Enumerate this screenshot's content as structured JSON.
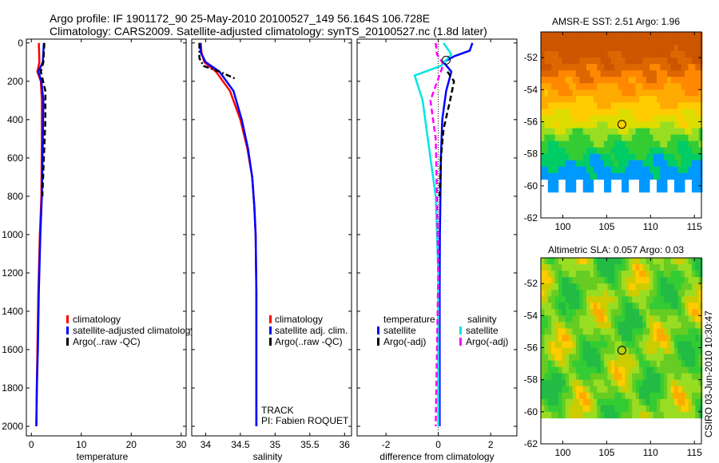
{
  "header": {
    "line1": "Argo profile: IF 1901172_90 25-May-2010 20100527_149 56.164S 106.728E",
    "line2": "Climatology: CARS2009. Satellite-adjusted climatology: synTS_20100527.nc (1.8d later)"
  },
  "colors": {
    "clim": "#ff0000",
    "sat": "#0000ff",
    "argo": "#000000",
    "sat_diff": "#00e5e5",
    "argo_adj": "#ff00ff"
  },
  "chart_data": [
    {
      "type": "line",
      "id": "temperature",
      "xlabel": "temperature",
      "ylabel": "",
      "xlim": [
        -1,
        31
      ],
      "ylim": [
        2050,
        -20
      ],
      "xticks": [
        0,
        10,
        20,
        30
      ],
      "xticklabels": [
        "0",
        "10",
        "20",
        "30"
      ],
      "yticks": [
        0,
        200,
        400,
        600,
        800,
        1000,
        1200,
        1400,
        1600,
        1800,
        2000
      ],
      "yticklabels": [
        "0",
        "200",
        "400",
        "600",
        "800",
        "1000",
        "1200",
        "1400",
        "1600",
        "1800",
        "2000"
      ],
      "legend": [
        "climatology",
        "satellite-adjusted climatology",
        "Argo(..raw -QC)"
      ],
      "series": [
        {
          "name": "climatology",
          "style": "solid",
          "color": "#ff0000",
          "x": [
            1.5,
            1.6,
            1.2,
            1.9,
            2.1,
            2.1,
            2.0,
            1.7,
            1.4,
            1.2,
            1.1,
            1.0
          ],
          "y": [
            0,
            100,
            150,
            200,
            300,
            500,
            800,
            1000,
            1300,
            1600,
            1800,
            2000
          ]
        },
        {
          "name": "satellite-adjusted climatology",
          "style": "solid",
          "color": "#0000ff",
          "x": [
            2.5,
            2.3,
            1.4,
            2.0,
            2.4,
            2.3,
            2.1,
            1.8,
            1.5,
            1.3,
            1.1,
            1.0
          ],
          "y": [
            0,
            100,
            150,
            200,
            300,
            500,
            800,
            1000,
            1300,
            1600,
            1800,
            2000
          ]
        },
        {
          "name": "Argo(..raw -QC)",
          "style": "dashed",
          "color": "#000000",
          "x": [
            2.6,
            2.4,
            1.9,
            2.8,
            2.8,
            2.5,
            2.2
          ],
          "y": [
            0,
            100,
            150,
            250,
            400,
            600,
            800
          ]
        }
      ]
    },
    {
      "type": "line",
      "id": "salinity",
      "xlabel": "salinity",
      "ylabel": "",
      "xlim": [
        33.8,
        36.1
      ],
      "ylim": [
        2050,
        -20
      ],
      "xticks": [
        34,
        34.5,
        35,
        35.5,
        36
      ],
      "xticklabels": [
        "34",
        "34.5",
        "35",
        "35.5",
        "36"
      ],
      "legend": [
        "climatology",
        "satellite adj. clim.",
        "Argo(..raw -QC)"
      ],
      "annotations": [
        "TRACK",
        "PI: Fabien ROQUET"
      ],
      "series": [
        {
          "name": "climatology",
          "style": "solid",
          "color": "#ff0000",
          "x": [
            33.93,
            33.94,
            33.98,
            34.15,
            34.35,
            34.5,
            34.6,
            34.67,
            34.7,
            34.72,
            34.73,
            34.73,
            34.73
          ],
          "y": [
            0,
            50,
            100,
            150,
            250,
            400,
            550,
            700,
            850,
            1000,
            1300,
            1600,
            2000
          ]
        },
        {
          "name": "satellite adj. clim.",
          "style": "solid",
          "color": "#0000ff",
          "x": [
            33.92,
            33.93,
            34.0,
            34.2,
            34.4,
            34.52,
            34.61,
            34.67,
            34.7,
            34.72,
            34.73,
            34.73,
            34.73
          ],
          "y": [
            0,
            50,
            100,
            150,
            250,
            400,
            550,
            700,
            850,
            1000,
            1300,
            1600,
            2000
          ]
        },
        {
          "name": "Argo(..raw -QC)",
          "style": "dashdot",
          "color": "#000000",
          "x": [
            33.91,
            33.91,
            33.97,
            34.2,
            34.45
          ],
          "y": [
            0,
            80,
            120,
            150,
            190
          ]
        }
      ]
    },
    {
      "type": "line",
      "id": "difference",
      "xlabel": "difference from climatology",
      "ylabel": "",
      "xlim": [
        -3.1,
        3.0
      ],
      "ylim": [
        2050,
        -20
      ],
      "xticks": [
        -2,
        0,
        2
      ],
      "xticklabels": [
        "-2",
        "0",
        "2"
      ],
      "legend_left_title": "temperature",
      "legend_right_title": "salinity",
      "legend_left": [
        "satellite",
        "Argo(-adj)"
      ],
      "legend_right": [
        "satellite",
        "Argo(-adj)"
      ],
      "series": [
        {
          "name": "temperature satellite",
          "style": "solid",
          "color": "#0000ff",
          "x": [
            1.3,
            1.2,
            0.6,
            0.2,
            0.5,
            0.3,
            0.15,
            0.1,
            0.08,
            0.06,
            0.05,
            0.05,
            0.05
          ],
          "y": [
            0,
            40,
            70,
            100,
            150,
            250,
            400,
            600,
            800,
            1000,
            1300,
            1600,
            2000
          ]
        },
        {
          "name": "temperature Argo(-adj)",
          "style": "dashed",
          "color": "#000000",
          "x": [
            0.35,
            0.6,
            0.45,
            0.2,
            0.1,
            0.05
          ],
          "y": [
            150,
            200,
            300,
            450,
            600,
            800
          ]
        },
        {
          "name": "salinity satellite",
          "style": "solid",
          "color": "#00e5e5",
          "x": [
            0.2,
            0.5,
            0.1,
            -0.9,
            -0.6,
            -0.3,
            -0.1,
            0.0,
            0.0,
            0.0
          ],
          "y": [
            0,
            60,
            120,
            170,
            300,
            600,
            800,
            1200,
            1600,
            2000
          ]
        },
        {
          "name": "salinity Argo(-adj)",
          "style": "dashed",
          "color": "#ff00ff",
          "x": [
            -0.1,
            -0.05,
            0.2,
            -0.3,
            -0.1,
            -0.05,
            0.0,
            -0.05,
            -0.1
          ],
          "y": [
            0,
            60,
            110,
            300,
            500,
            800,
            1200,
            1600,
            2000
          ]
        }
      ]
    },
    {
      "type": "heatmap",
      "id": "sst",
      "title": "AMSR-E SST: 2.51 Argo: 1.96",
      "xlim": [
        97.5,
        115.8
      ],
      "ylim": [
        -62,
        -50.4
      ],
      "xticks": [
        100,
        105,
        110,
        115
      ],
      "xticklabels": [
        "100",
        "105",
        "110",
        "115"
      ],
      "yticks": [
        -52,
        -54,
        -56,
        -58,
        -60,
        -62
      ],
      "yticklabels": [
        "-52",
        "-54",
        "-56",
        "-58",
        "-60",
        "-62"
      ],
      "marker": {
        "lon": 106.728,
        "lat": -56.164
      }
    },
    {
      "type": "heatmap",
      "id": "sla",
      "title": "Altimetric SLA: 0.057 Argo: 0.03",
      "xlim": [
        97.5,
        115.8
      ],
      "ylim": [
        -62,
        -50.4
      ],
      "xticks": [
        100,
        105,
        110,
        115
      ],
      "xticklabels": [
        "100",
        "105",
        "110",
        "115"
      ],
      "yticks": [
        -52,
        -54,
        -56,
        -58,
        -60,
        -62
      ],
      "yticklabels": [
        "-52",
        "-54",
        "-56",
        "-58",
        "-60",
        "-62"
      ],
      "marker": {
        "lon": 106.728,
        "lat": -56.164
      },
      "side_label": "CSIRO 03-Jun-2010 10:30:47"
    }
  ]
}
